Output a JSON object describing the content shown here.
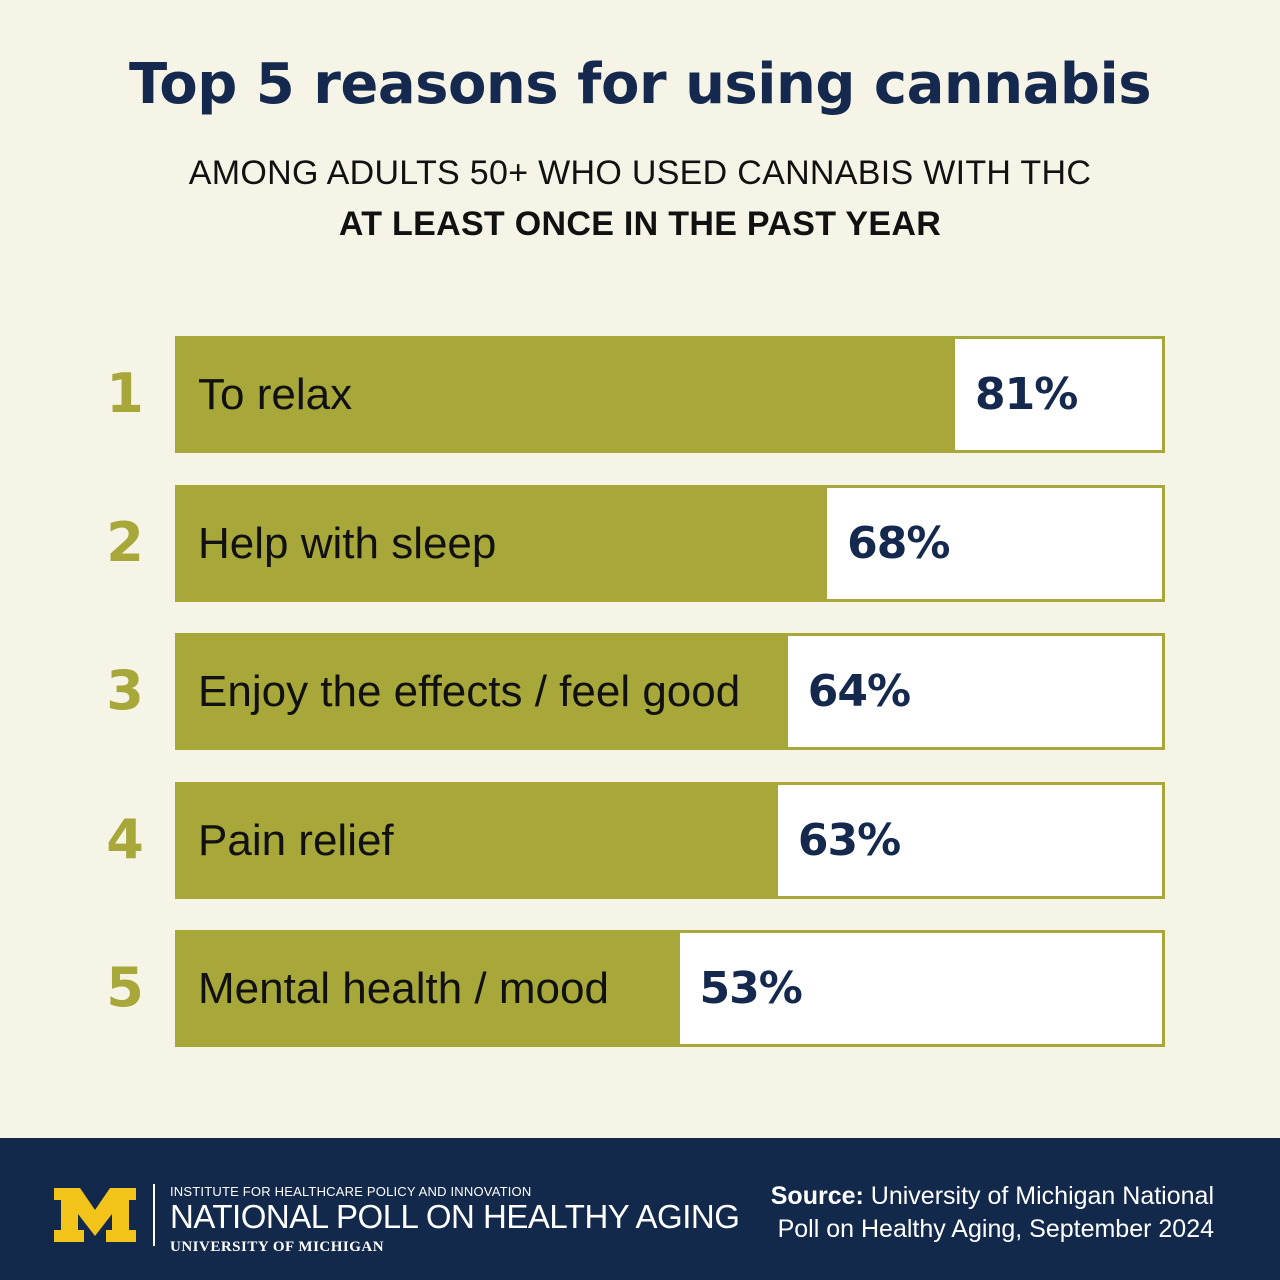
{
  "chart_data": {
    "type": "bar",
    "orientation": "horizontal",
    "title": "Top 5 reasons for using cannabis",
    "subtitle_line1": "AMONG ADULTS 50+ WHO USED CANNABIS WITH THC",
    "subtitle_line2": "AT LEAST ONCE IN THE PAST YEAR",
    "xlim": [
      0,
      100
    ],
    "value_suffix": "%",
    "grid": false,
    "legend": "none",
    "categories": [
      "To relax",
      "Help with sleep",
      "Enjoy the effects / feel good",
      "Pain relief",
      "Mental health / mood"
    ],
    "ranks": [
      "1",
      "2",
      "3",
      "4",
      "5"
    ],
    "values": [
      81,
      68,
      64,
      63,
      53
    ],
    "value_labels": [
      "81%",
      "68%",
      "64%",
      "63%",
      "53%"
    ]
  },
  "footer": {
    "institute": "INSTITUTE FOR HEALTHCARE POLICY AND INNOVATION",
    "poll_name": "NATIONAL POLL ON HEALTHY AGING",
    "university": "UNIVERSITY OF MICHIGAN",
    "source_label": "Source:",
    "source_text": "University of Michigan National Poll on Healthy Aging, September 2024"
  },
  "colors": {
    "background": "#f6f4e7",
    "bar": "#a8a83a",
    "title": "#14294d",
    "footer": "#13294b",
    "logo": "#f2c318"
  },
  "icons": {
    "logo": "university-of-michigan-block-m-logo"
  }
}
